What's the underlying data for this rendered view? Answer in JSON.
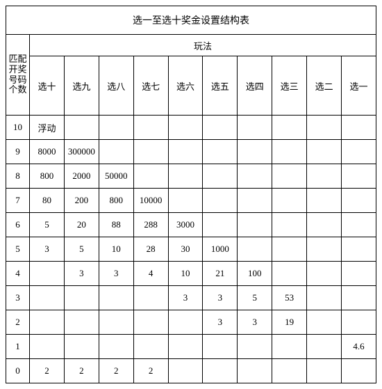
{
  "title": "选一至选十奖金设置结构表",
  "play_label": "玩法",
  "row_label": "匹配开奖号码个数",
  "columns": [
    "选十",
    "选九",
    "选八",
    "选七",
    "选六",
    "选五",
    "选四",
    "选三",
    "选二",
    "选一"
  ],
  "match_values": [
    "10",
    "9",
    "8",
    "7",
    "6",
    "5",
    "4",
    "3",
    "2",
    "1",
    "0"
  ],
  "rows": [
    [
      "浮动",
      "",
      "",
      "",
      "",
      "",
      "",
      "",
      "",
      ""
    ],
    [
      "8000",
      "300000",
      "",
      "",
      "",
      "",
      "",
      "",
      "",
      ""
    ],
    [
      "800",
      "2000",
      "50000",
      "",
      "",
      "",
      "",
      "",
      "",
      ""
    ],
    [
      "80",
      "200",
      "800",
      "10000",
      "",
      "",
      "",
      "",
      "",
      ""
    ],
    [
      "5",
      "20",
      "88",
      "288",
      "3000",
      "",
      "",
      "",
      "",
      ""
    ],
    [
      "3",
      "5",
      "10",
      "28",
      "30",
      "1000",
      "",
      "",
      "",
      ""
    ],
    [
      "",
      "3",
      "3",
      "4",
      "10",
      "21",
      "100",
      "",
      "",
      ""
    ],
    [
      "",
      "",
      "",
      "",
      "3",
      "3",
      "5",
      "53",
      "",
      ""
    ],
    [
      "",
      "",
      "",
      "",
      "",
      "3",
      "3",
      "19",
      "",
      ""
    ],
    [
      "",
      "",
      "",
      "",
      "",
      "",
      "",
      "",
      "",
      "4.6"
    ],
    [
      "2",
      "2",
      "2",
      "2",
      "",
      "",
      "",
      "",
      "",
      ""
    ]
  ],
  "colors": {
    "border": "#000000",
    "background": "#ffffff",
    "text": "#000000"
  }
}
